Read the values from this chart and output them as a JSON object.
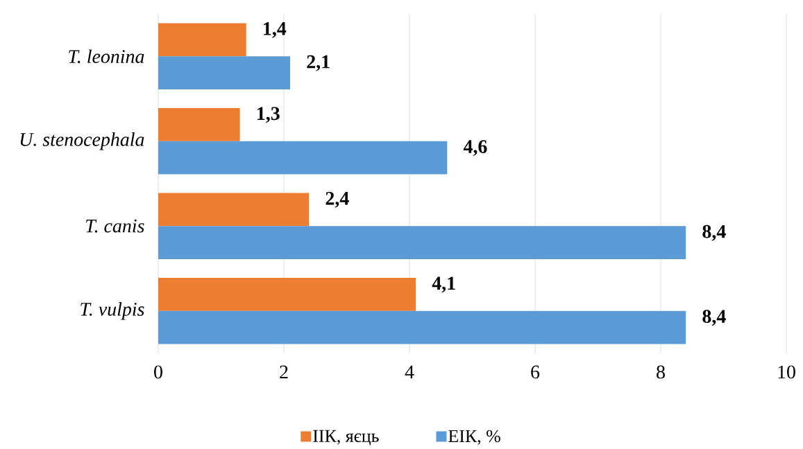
{
  "chart_data": {
    "type": "bar",
    "orientation": "horizontal",
    "categories": [
      "T. leonina",
      "U. stenocephala",
      "T. canis",
      "T. vulpis"
    ],
    "series": [
      {
        "name": "ІІК, яєць",
        "color": "#ed7d31",
        "values": [
          1.4,
          1.3,
          2.4,
          4.1
        ],
        "value_labels": [
          "1,4",
          "1,3",
          "2,4",
          "4,1"
        ]
      },
      {
        "name": "ЕІК, %",
        "color": "#5b9bd5",
        "values": [
          2.1,
          4.6,
          8.4,
          8.4
        ],
        "value_labels": [
          "2,1",
          "4,6",
          "8,4",
          "8,4"
        ]
      }
    ],
    "xlim": [
      0,
      10
    ],
    "xticks": [
      0,
      2,
      4,
      6,
      8,
      10
    ],
    "grid": "x",
    "legend": "bottom"
  }
}
